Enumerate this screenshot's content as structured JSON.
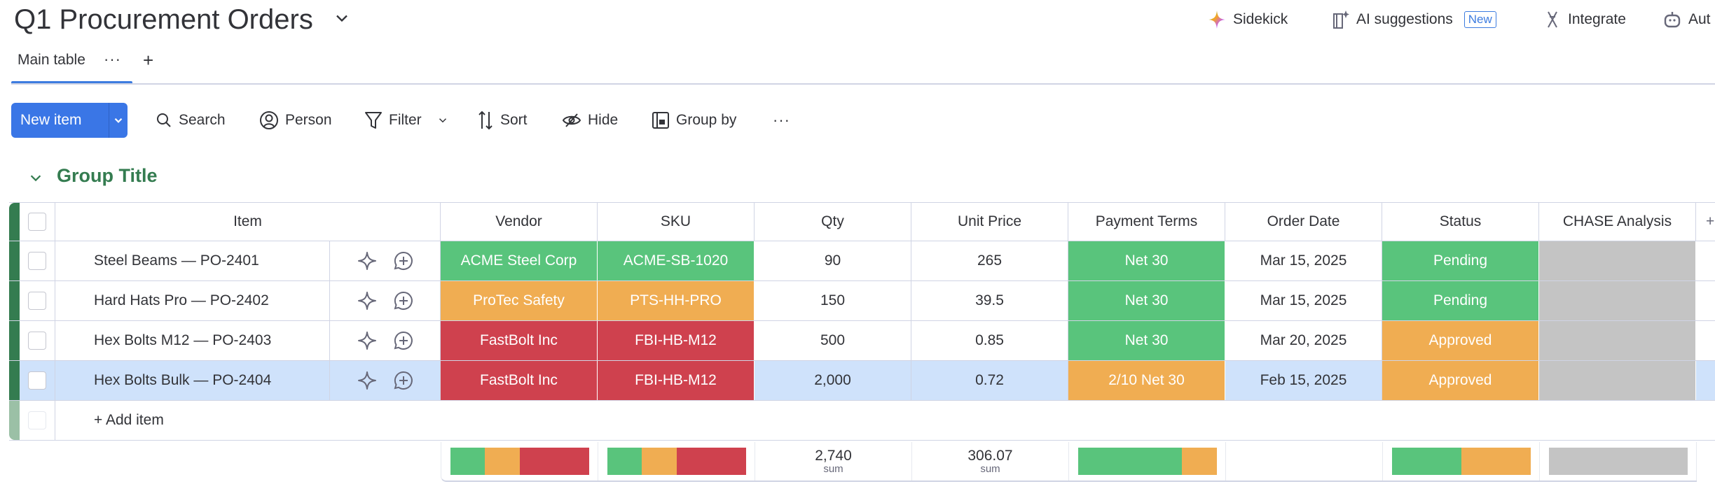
{
  "board": {
    "title": "Q1 Procurement Orders"
  },
  "top_actions": {
    "sidekick": "Sidekick",
    "ai_suggestions": "AI suggestions",
    "new_badge": "New",
    "integrate": "Integrate",
    "automate": "Aut"
  },
  "tabs": {
    "main": "Main table",
    "more": "···",
    "add": "+"
  },
  "toolbar": {
    "new_item": "New item",
    "search": "Search",
    "person": "Person",
    "filter": "Filter",
    "sort": "Sort",
    "hide": "Hide",
    "group_by": "Group by",
    "more": "···"
  },
  "group": {
    "title": "Group Title",
    "color": "#347c50"
  },
  "colors": {
    "green": "#59c47c",
    "orange": "#f0ad52",
    "red": "#cf414e",
    "gray": "#c4c4c4",
    "selected": "#cfe2fb"
  },
  "columns": {
    "item": "Item",
    "vendor": "Vendor",
    "sku": "SKU",
    "qty": "Qty",
    "unit_price": "Unit Price",
    "payment_terms": "Payment Terms",
    "order_date": "Order Date",
    "status": "Status",
    "chase": "CHASE Analysis",
    "add": "+"
  },
  "rows": [
    {
      "item": "Steel Beams — PO-2401",
      "vendor": {
        "label": "ACME Steel Corp",
        "color": "#59c47c"
      },
      "sku": {
        "label": "ACME-SB-1020",
        "color": "#59c47c"
      },
      "qty": "90",
      "unit_price": "265",
      "payment_terms": {
        "label": "Net 30",
        "color": "#59c47c"
      },
      "order_date": "Mar 15, 2025",
      "status": {
        "label": "Pending",
        "color": "#59c47c"
      },
      "chase": {
        "label": "",
        "color": "#c4c4c4"
      },
      "selected": false
    },
    {
      "item": "Hard Hats Pro — PO-2402",
      "vendor": {
        "label": "ProTec Safety",
        "color": "#f0ad52"
      },
      "sku": {
        "label": "PTS-HH-PRO",
        "color": "#f0ad52"
      },
      "qty": "150",
      "unit_price": "39.5",
      "payment_terms": {
        "label": "Net 30",
        "color": "#59c47c"
      },
      "order_date": "Mar 15, 2025",
      "status": {
        "label": "Pending",
        "color": "#59c47c"
      },
      "chase": {
        "label": "",
        "color": "#c4c4c4"
      },
      "selected": false
    },
    {
      "item": "Hex Bolts M12 — PO-2403",
      "vendor": {
        "label": "FastBolt Inc",
        "color": "#cf414e"
      },
      "sku": {
        "label": "FBI-HB-M12",
        "color": "#cf414e"
      },
      "qty": "500",
      "unit_price": "0.85",
      "payment_terms": {
        "label": "Net 30",
        "color": "#59c47c"
      },
      "order_date": "Mar 20, 2025",
      "status": {
        "label": "Approved",
        "color": "#f0ad52"
      },
      "chase": {
        "label": "",
        "color": "#c4c4c4"
      },
      "selected": false
    },
    {
      "item": "Hex Bolts Bulk — PO-2404",
      "vendor": {
        "label": "FastBolt Inc",
        "color": "#cf414e"
      },
      "sku": {
        "label": "FBI-HB-M12",
        "color": "#cf414e"
      },
      "qty": "2,000",
      "unit_price": "0.72",
      "payment_terms": {
        "label": "2/10 Net 30",
        "color": "#f0ad52"
      },
      "order_date": "Feb 15, 2025",
      "status": {
        "label": "Approved",
        "color": "#f0ad52"
      },
      "chase": {
        "label": "",
        "color": "#c4c4c4"
      },
      "selected": true
    }
  ],
  "add_item": "+ Add item",
  "summary": {
    "vendor": [
      {
        "color": "#59c47c",
        "fraction": 0.25
      },
      {
        "color": "#f0ad52",
        "fraction": 0.25
      },
      {
        "color": "#cf414e",
        "fraction": 0.5
      }
    ],
    "sku": [
      {
        "color": "#59c47c",
        "fraction": 0.25
      },
      {
        "color": "#f0ad52",
        "fraction": 0.25
      },
      {
        "color": "#cf414e",
        "fraction": 0.5
      }
    ],
    "qty": {
      "value": "2,740",
      "label": "sum"
    },
    "unit_price": {
      "value": "306.07",
      "label": "sum"
    },
    "payment_terms": [
      {
        "color": "#59c47c",
        "fraction": 0.75
      },
      {
        "color": "#f0ad52",
        "fraction": 0.25
      }
    ],
    "status": [
      {
        "color": "#59c47c",
        "fraction": 0.5
      },
      {
        "color": "#f0ad52",
        "fraction": 0.5
      }
    ],
    "chase": [
      {
        "color": "#c4c4c4",
        "fraction": 1
      }
    ]
  }
}
